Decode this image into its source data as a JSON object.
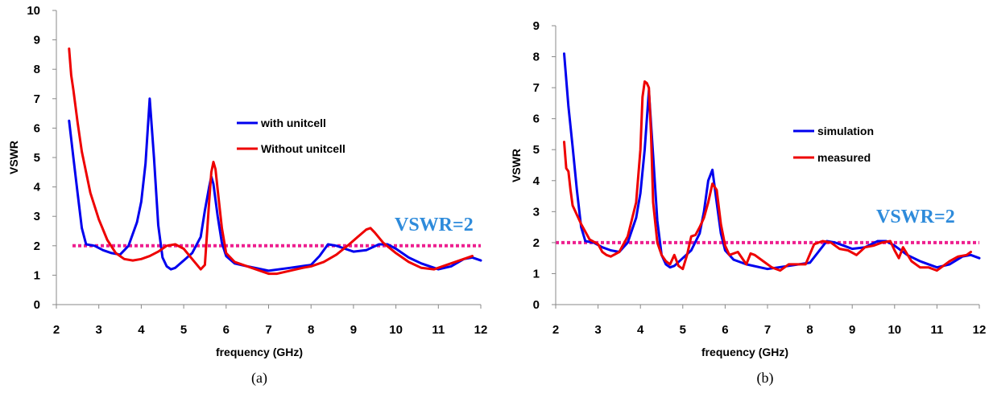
{
  "colors": {
    "blue": "#0000ee",
    "red": "#ee0000",
    "ref": "#ee1f8f",
    "annotation": "#2e8bdb",
    "axis": "#888888"
  },
  "chart_data": [
    {
      "id": "a",
      "type": "line",
      "caption": "(a)",
      "xlabel": "frequency (GHz)",
      "ylabel": "VSWR",
      "xlim": [
        2,
        12
      ],
      "ylim": [
        0,
        10
      ],
      "xticks": [
        "2",
        "3",
        "4",
        "5",
        "6",
        "7",
        "8",
        "9",
        "10",
        "11",
        "12"
      ],
      "yticks": [
        "0",
        "1",
        "2",
        "3",
        "4",
        "5",
        "6",
        "7",
        "8",
        "9",
        "10"
      ],
      "grid": false,
      "legend_position": "center",
      "annotation": "VSWR=2",
      "reference_line": {
        "y": 2,
        "style": "dotted"
      },
      "series": [
        {
          "name": "with unitcell",
          "color": "#0000ee",
          "x": [
            2.3,
            2.4,
            2.5,
            2.6,
            2.7,
            2.9,
            3.1,
            3.3,
            3.5,
            3.7,
            3.9,
            4.0,
            4.1,
            4.2,
            4.3,
            4.4,
            4.5,
            4.6,
            4.7,
            4.8,
            5.0,
            5.2,
            5.4,
            5.5,
            5.6,
            5.65,
            5.7,
            5.8,
            5.9,
            6.0,
            6.2,
            6.5,
            7.0,
            7.5,
            8.0,
            8.2,
            8.4,
            8.6,
            8.8,
            9.0,
            9.3,
            9.6,
            9.8,
            10.0,
            10.3,
            10.6,
            11.0,
            11.3,
            11.6,
            11.8,
            12.0
          ],
          "y": [
            6.25,
            5.0,
            3.8,
            2.6,
            2.05,
            2.0,
            1.85,
            1.75,
            1.7,
            2.0,
            2.8,
            3.5,
            4.8,
            7.0,
            5.0,
            2.7,
            1.6,
            1.3,
            1.2,
            1.25,
            1.5,
            1.75,
            2.3,
            3.2,
            4.0,
            4.35,
            4.1,
            3.0,
            2.1,
            1.65,
            1.4,
            1.3,
            1.15,
            1.25,
            1.35,
            1.65,
            2.05,
            2.0,
            1.9,
            1.8,
            1.85,
            2.05,
            2.05,
            1.9,
            1.6,
            1.4,
            1.2,
            1.3,
            1.55,
            1.6,
            1.5
          ]
        },
        {
          "name": "Without unitcell",
          "color": "#ee0000",
          "x": [
            2.3,
            2.35,
            2.4,
            2.5,
            2.6,
            2.8,
            3.0,
            3.2,
            3.4,
            3.6,
            3.8,
            4.0,
            4.2,
            4.4,
            4.6,
            4.8,
            5.0,
            5.2,
            5.4,
            5.5,
            5.6,
            5.65,
            5.7,
            5.75,
            5.8,
            5.9,
            6.0,
            6.2,
            6.5,
            6.8,
            7.0,
            7.2,
            7.5,
            7.8,
            8.0,
            8.3,
            8.6,
            8.9,
            9.1,
            9.3,
            9.4,
            9.5,
            9.7,
            10.0,
            10.3,
            10.6,
            10.9,
            11.2,
            11.5,
            11.8
          ],
          "y": [
            8.7,
            7.8,
            7.3,
            6.2,
            5.2,
            3.8,
            2.9,
            2.2,
            1.75,
            1.55,
            1.5,
            1.55,
            1.65,
            1.8,
            2.0,
            2.05,
            1.9,
            1.55,
            1.2,
            1.35,
            3.5,
            4.5,
            4.85,
            4.6,
            3.9,
            2.6,
            1.75,
            1.45,
            1.3,
            1.15,
            1.05,
            1.05,
            1.15,
            1.25,
            1.3,
            1.45,
            1.7,
            2.05,
            2.3,
            2.55,
            2.6,
            2.45,
            2.1,
            1.75,
            1.45,
            1.25,
            1.2,
            1.35,
            1.5,
            1.65
          ]
        }
      ]
    },
    {
      "id": "b",
      "type": "line",
      "caption": "(b)",
      "xlabel": "frequency (GHz)",
      "ylabel": "VSWR",
      "xlim": [
        2,
        12
      ],
      "ylim": [
        0,
        9
      ],
      "xticks": [
        "2",
        "3",
        "4",
        "5",
        "6",
        "7",
        "8",
        "9",
        "10",
        "11",
        "12"
      ],
      "yticks": [
        "0",
        "1",
        "2",
        "3",
        "4",
        "5",
        "6",
        "7",
        "8",
        "9"
      ],
      "grid": false,
      "legend_position": "center",
      "annotation": "VSWR=2",
      "reference_line": {
        "y": 2,
        "style": "dotted"
      },
      "series": [
        {
          "name": "simulation",
          "color": "#0000ee",
          "x": [
            2.2,
            2.3,
            2.4,
            2.5,
            2.6,
            2.7,
            2.9,
            3.1,
            3.3,
            3.5,
            3.7,
            3.9,
            4.0,
            4.1,
            4.2,
            4.3,
            4.4,
            4.5,
            4.6,
            4.7,
            4.8,
            5.0,
            5.2,
            5.4,
            5.5,
            5.6,
            5.7,
            5.8,
            5.9,
            6.0,
            6.2,
            6.5,
            7.0,
            7.5,
            8.0,
            8.2,
            8.4,
            8.6,
            8.8,
            9.0,
            9.3,
            9.6,
            9.8,
            10.0,
            10.3,
            10.6,
            11.0,
            11.3,
            11.6,
            11.8,
            12.0
          ],
          "y": [
            8.1,
            6.4,
            5.1,
            3.7,
            2.5,
            2.05,
            2.0,
            1.85,
            1.75,
            1.7,
            2.0,
            2.8,
            3.6,
            5.0,
            6.9,
            4.8,
            2.7,
            1.6,
            1.3,
            1.2,
            1.25,
            1.5,
            1.75,
            2.3,
            3.0,
            4.0,
            4.35,
            3.3,
            2.3,
            1.75,
            1.45,
            1.3,
            1.15,
            1.25,
            1.35,
            1.7,
            2.05,
            2.0,
            1.9,
            1.8,
            1.85,
            2.05,
            2.05,
            1.9,
            1.6,
            1.4,
            1.2,
            1.3,
            1.55,
            1.6,
            1.5
          ]
        },
        {
          "name": "measured",
          "color": "#ee0000",
          "x": [
            2.2,
            2.25,
            2.3,
            2.35,
            2.4,
            2.5,
            2.6,
            2.8,
            3.0,
            3.1,
            3.2,
            3.3,
            3.5,
            3.7,
            3.9,
            4.0,
            4.05,
            4.1,
            4.15,
            4.2,
            4.25,
            4.3,
            4.4,
            4.5,
            4.6,
            4.7,
            4.8,
            4.9,
            5.0,
            5.1,
            5.2,
            5.3,
            5.4,
            5.5,
            5.6,
            5.7,
            5.8,
            5.9,
            6.0,
            6.1,
            6.3,
            6.5,
            6.6,
            6.7,
            6.9,
            7.1,
            7.3,
            7.5,
            7.7,
            7.9,
            8.1,
            8.3,
            8.5,
            8.7,
            8.9,
            9.1,
            9.3,
            9.5,
            9.7,
            9.9,
            10.0,
            10.1,
            10.2,
            10.4,
            10.6,
            10.8,
            11.0,
            11.1,
            11.3,
            11.5,
            11.7,
            11.8
          ],
          "y": [
            5.25,
            4.4,
            4.3,
            3.7,
            3.2,
            2.9,
            2.6,
            2.1,
            1.95,
            1.7,
            1.6,
            1.55,
            1.7,
            2.2,
            3.3,
            5.0,
            6.7,
            7.2,
            7.15,
            7.0,
            5.5,
            3.3,
            2.0,
            1.6,
            1.4,
            1.3,
            1.6,
            1.25,
            1.15,
            1.6,
            2.2,
            2.25,
            2.5,
            2.8,
            3.3,
            3.9,
            3.7,
            2.6,
            1.9,
            1.6,
            1.7,
            1.3,
            1.65,
            1.6,
            1.4,
            1.2,
            1.1,
            1.3,
            1.3,
            1.3,
            1.95,
            2.05,
            2.0,
            1.8,
            1.75,
            1.6,
            1.85,
            1.9,
            2.0,
            2.05,
            1.75,
            1.5,
            1.85,
            1.4,
            1.2,
            1.2,
            1.1,
            1.2,
            1.4,
            1.55,
            1.6,
            1.7
          ]
        }
      ]
    }
  ]
}
